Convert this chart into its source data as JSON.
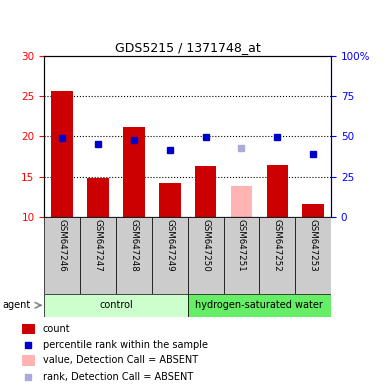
{
  "title": "GDS5215 / 1371748_at",
  "samples": [
    "GSM647246",
    "GSM647247",
    "GSM647248",
    "GSM647249",
    "GSM647250",
    "GSM647251",
    "GSM647252",
    "GSM647253"
  ],
  "bar_values": [
    25.6,
    14.8,
    21.1,
    14.2,
    16.3,
    null,
    16.5,
    11.6
  ],
  "bar_absent_values": [
    null,
    null,
    null,
    null,
    null,
    13.9,
    null,
    null
  ],
  "rank_values": [
    19.8,
    19.0,
    19.6,
    18.3,
    19.9,
    null,
    19.9,
    17.8
  ],
  "rank_absent_values": [
    null,
    null,
    null,
    null,
    null,
    18.6,
    null,
    null
  ],
  "bar_color": "#cc0000",
  "bar_absent_color": "#ffb3b3",
  "rank_color": "#0000cc",
  "rank_absent_color": "#aaaadd",
  "ylim_left": [
    10,
    30
  ],
  "ylim_right": [
    0,
    100
  ],
  "yticks_left": [
    10,
    15,
    20,
    25,
    30
  ],
  "yticks_right": [
    0,
    25,
    50,
    75,
    100
  ],
  "ytick_labels_right": [
    "0",
    "25",
    "50",
    "75",
    "100%"
  ],
  "groups": [
    {
      "label": "control",
      "indices": [
        0,
        1,
        2,
        3
      ],
      "color": "#ccffcc"
    },
    {
      "label": "hydrogen-saturated water",
      "indices": [
        4,
        5,
        6,
        7
      ],
      "color": "#66ee66"
    }
  ],
  "agent_label": "agent",
  "legend_items": [
    {
      "label": "count",
      "color": "#cc0000",
      "is_rank": false
    },
    {
      "label": "percentile rank within the sample",
      "color": "#0000cc",
      "is_rank": true
    },
    {
      "label": "value, Detection Call = ABSENT",
      "color": "#ffb3b3",
      "is_rank": false
    },
    {
      "label": "rank, Detection Call = ABSENT",
      "color": "#aaaadd",
      "is_rank": true
    }
  ],
  "bar_width": 0.6
}
